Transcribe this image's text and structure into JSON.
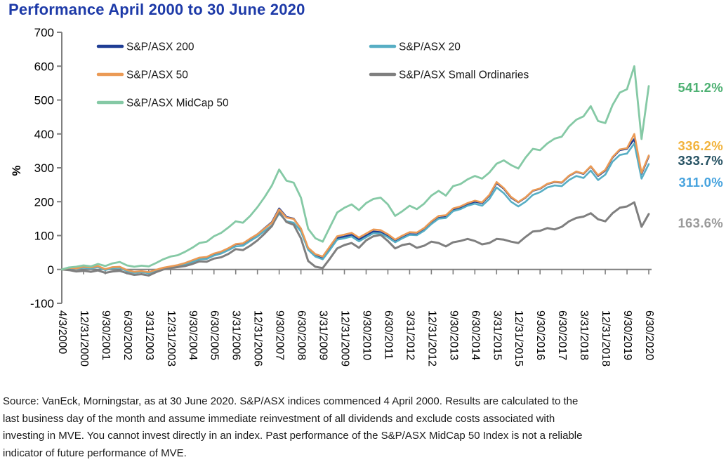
{
  "title": "Performance April 2000 to 30 June 2020",
  "title_color": "#1d3aa8",
  "footnote": {
    "lines": [
      "Source: VanEck, Morningstar, as at 30 June 2020. S&P/ASX indices commenced 4 April 2000. Results are calculated to the",
      "last business day of the month and assume immediate reinvestment of all dividends and exclude costs associated with",
      "investing in MVE. You cannot invest directly in an index. Past performance of the S&P/ASX MidCap 50 Index is not a reliable",
      "indicator of future performance of MVE."
    ]
  },
  "chart_data": {
    "type": "line",
    "title": "Performance April 2000 to 30 June 2020",
    "ylabel": "%",
    "ylim": [
      -100,
      700
    ],
    "y_ticks": [
      700,
      600,
      500,
      400,
      300,
      200,
      100,
      0,
      -100
    ],
    "grid": false,
    "axis_color": "#7f7f7f",
    "legend_position": "top-inside-two-columns",
    "x_unit": "months since 3 April 2000 (monthly index series, plotted quarterly)",
    "x_start": 0,
    "x_step": 3,
    "x_end": 243,
    "x_tick_positions": [
      0,
      9,
      18,
      27,
      36,
      45,
      54,
      63,
      72,
      81,
      90,
      99,
      108,
      117,
      126,
      135,
      144,
      153,
      162,
      171,
      180,
      189,
      198,
      207,
      216,
      225,
      234,
      243
    ],
    "x_tick_labels": [
      "4/3/2000",
      "12/31/2000",
      "9/30/2001",
      "6/30/2002",
      "3/31/2003",
      "12/31/2003",
      "9/30/2004",
      "6/30/2005",
      "3/31/2006",
      "12/31/2006",
      "9/30/2007",
      "6/30/2008",
      "3/31/2009",
      "12/31/2009",
      "9/30/2010",
      "6/30/2011",
      "3/31/2012",
      "12/31/2012",
      "9/30/2013",
      "6/30/2014",
      "3/31/2015",
      "12/31/2015",
      "9/30/2016",
      "6/30/2017",
      "3/31/2018",
      "12/31/2018",
      "9/30/2019",
      "6/30/2020"
    ],
    "series": [
      {
        "name": "S&P/ASX 200",
        "color": "#1f3d94",
        "width": 2.6,
        "z": 1,
        "legend_col": 0,
        "legend_row": 0,
        "end_label": "333.7%",
        "end_label_color": "#265263",
        "end_label_y": 229,
        "values": [
          0,
          4,
          2,
          6,
          4,
          8,
          -1,
          5,
          6,
          -4,
          -9,
          -7,
          -10,
          -3,
          3,
          8,
          12,
          18,
          26,
          34,
          36,
          46,
          52,
          62,
          74,
          76,
          90,
          104,
          122,
          140,
          180,
          155,
          150,
          120,
          60,
          40,
          32,
          62,
          92,
          97,
          102,
          88,
          100,
          112,
          110,
          98,
          82,
          94,
          104,
          103,
          116,
          136,
          152,
          155,
          176,
          182,
          192,
          200,
          196,
          218,
          255,
          238,
          212,
          198,
          212,
          232,
          238,
          252,
          258,
          256,
          276,
          288,
          282,
          304,
          276,
          292,
          330,
          352,
          356,
          385,
          282,
          333.7
        ]
      },
      {
        "name": "S&P/ASX 50",
        "color": "#eb9a55",
        "width": 2.6,
        "z": 4,
        "legend_col": 0,
        "legend_row": 1,
        "end_label": "336.2%",
        "end_label_color": "#f2b33c",
        "end_label_y": 208,
        "values": [
          0,
          5,
          3,
          8,
          6,
          10,
          1,
          7,
          8,
          -2,
          -7,
          -5,
          -8,
          -1,
          5,
          9,
          13,
          19,
          27,
          35,
          37,
          47,
          53,
          63,
          75,
          77,
          91,
          104,
          121,
          138,
          177,
          153,
          149,
          121,
          64,
          45,
          38,
          68,
          98,
          103,
          108,
          94,
          106,
          118,
          116,
          104,
          88,
          100,
          110,
          109,
          122,
          142,
          158,
          160,
          180,
          186,
          196,
          203,
          198,
          220,
          258,
          240,
          214,
          199,
          213,
          233,
          239,
          253,
          259,
          257,
          277,
          289,
          283,
          305,
          278,
          294,
          332,
          354,
          358,
          400,
          285,
          336.2
        ]
      },
      {
        "name": "S&P/ASX MidCap 50",
        "color": "#85c9a5",
        "width": 2.8,
        "z": 5,
        "legend_col": 0,
        "legend_row": 2,
        "end_label": "541.2%",
        "end_label_color": "#4eb173",
        "end_label_y": 125,
        "values": [
          0,
          6,
          8,
          12,
          9,
          16,
          10,
          18,
          22,
          12,
          8,
          11,
          9,
          19,
          30,
          38,
          42,
          52,
          64,
          78,
          82,
          98,
          108,
          124,
          142,
          138,
          158,
          184,
          214,
          248,
          295,
          262,
          256,
          212,
          120,
          92,
          82,
          125,
          168,
          182,
          192,
          175,
          196,
          208,
          212,
          192,
          158,
          172,
          188,
          178,
          194,
          218,
          232,
          218,
          246,
          252,
          266,
          276,
          268,
          286,
          312,
          322,
          308,
          298,
          330,
          356,
          352,
          372,
          386,
          392,
          422,
          442,
          452,
          482,
          438,
          432,
          485,
          522,
          532,
          600,
          385,
          541.2
        ]
      },
      {
        "name": "S&P/ASX 20",
        "color": "#57aec4",
        "width": 2.6,
        "z": 2,
        "legend_col": 1,
        "legend_row": 0,
        "end_label": "311.0%",
        "end_label_color": "#47a3de",
        "end_label_y": 260,
        "values": [
          0,
          4,
          2,
          5,
          3,
          7,
          -2,
          4,
          5,
          -5,
          -10,
          -8,
          -11,
          -4,
          2,
          7,
          10,
          15,
          22,
          30,
          31,
          41,
          47,
          57,
          68,
          70,
          84,
          97,
          114,
          130,
          165,
          142,
          138,
          112,
          58,
          38,
          30,
          58,
          88,
          92,
          97,
          83,
          95,
          107,
          106,
          95,
          80,
          92,
          102,
          101,
          114,
          134,
          150,
          152,
          172,
          178,
          188,
          194,
          188,
          208,
          242,
          225,
          200,
          186,
          200,
          220,
          228,
          242,
          248,
          246,
          264,
          276,
          270,
          292,
          264,
          280,
          318,
          338,
          342,
          372,
          268,
          311.0
        ]
      },
      {
        "name": "S&P/ASX Small Ordinaries",
        "color": "#7f7f7f",
        "width": 3,
        "z": 3,
        "legend_col": 1,
        "legend_row": 1,
        "end_label": "163.6%",
        "end_label_color": "#9a9a9a",
        "end_label_y": 318,
        "values": [
          0,
          -2,
          -6,
          -4,
          -7,
          -3,
          -10,
          -6,
          -4,
          -11,
          -16,
          -14,
          -18,
          -8,
          0,
          4,
          7,
          10,
          16,
          24,
          23,
          32,
          36,
          46,
          60,
          57,
          70,
          86,
          106,
          128,
          170,
          140,
          132,
          92,
          25,
          8,
          4,
          32,
          62,
          72,
          78,
          64,
          86,
          98,
          102,
          84,
          62,
          72,
          76,
          64,
          70,
          82,
          78,
          68,
          80,
          84,
          90,
          84,
          74,
          78,
          90,
          88,
          82,
          78,
          96,
          112,
          114,
          122,
          118,
          126,
          142,
          152,
          156,
          166,
          148,
          142,
          166,
          182,
          186,
          198,
          126,
          163.6
        ]
      }
    ]
  }
}
